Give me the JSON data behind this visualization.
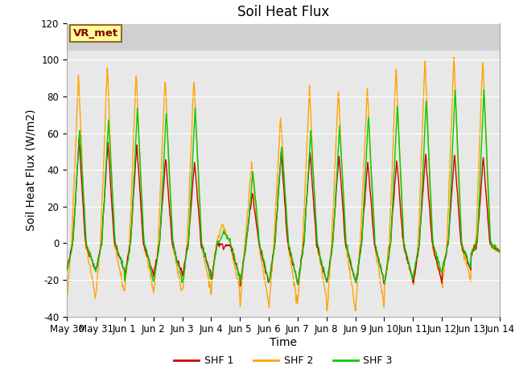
{
  "title": "Soil Heat Flux",
  "ylabel": "Soil Heat Flux (W/m2)",
  "xlabel": "Time",
  "ylim": [
    -40,
    120
  ],
  "yticks": [
    -40,
    -20,
    0,
    20,
    40,
    60,
    80,
    100,
    120
  ],
  "line_colors": {
    "SHF 1": "#cc0000",
    "SHF 2": "#ffa500",
    "SHF 3": "#00cc00"
  },
  "legend_labels": [
    "SHF 1",
    "SHF 2",
    "SHF 3"
  ],
  "xtick_labels": [
    "May 30",
    "May 31",
    "Jun 1",
    "Jun 2",
    "Jun 3",
    "Jun 4",
    "Jun 5",
    "Jun 6",
    "Jun 7",
    "Jun 8",
    "Jun 9",
    "Jun 10",
    "Jun 11",
    "Jun 12",
    "Jun 13",
    "Jun 14"
  ],
  "title_fontsize": 12,
  "axis_fontsize": 10,
  "tick_fontsize": 8.5,
  "plot_bg_color": "#e8e8e8",
  "top_band_color": "#d0d0d0",
  "annotation_text": "VR_met",
  "annotation_bg": "#ffff99",
  "annotation_border": "#996633",
  "n_days": 15,
  "peak_shf1": [
    57,
    55,
    54,
    47,
    45,
    -2,
    27,
    50,
    50,
    49,
    45,
    46,
    49,
    49,
    47
  ],
  "peak_shf2": [
    92,
    96,
    94,
    91,
    91,
    10,
    43,
    70,
    85,
    85,
    85,
    96,
    102,
    103,
    103
  ],
  "peak_shf3": [
    63,
    68,
    74,
    72,
    74,
    6,
    39,
    54,
    61,
    63,
    70,
    75,
    79,
    84,
    84
  ],
  "trough_shf1": [
    -15,
    -15,
    -17,
    -18,
    -18,
    -20,
    -23,
    -22,
    -22,
    -22,
    -22,
    -22,
    -22,
    -15,
    -5
  ],
  "trough_shf2": [
    -30,
    -28,
    -25,
    -27,
    -27,
    -27,
    -35,
    -35,
    -30,
    -38,
    -35,
    -22,
    -22,
    -22,
    -5
  ],
  "trough_shf3": [
    -15,
    -15,
    -20,
    -21,
    -21,
    -20,
    -22,
    -22,
    -22,
    -22,
    -22,
    -22,
    -17,
    -14,
    -5
  ]
}
